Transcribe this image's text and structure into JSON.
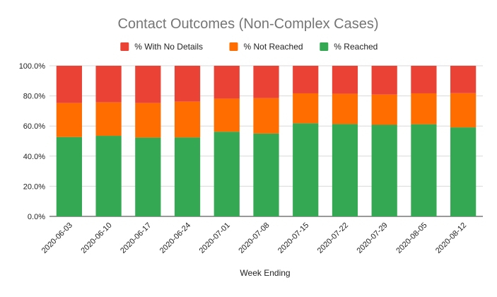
{
  "chart_data": {
    "type": "bar",
    "stacked": true,
    "title": "Contact Outcomes (Non-Complex Cases)",
    "xlabel": "Week Ending",
    "ylabel": "",
    "ylim": [
      0,
      100
    ],
    "yticks": [
      "0.0%",
      "20.0%",
      "40.0%",
      "60.0%",
      "80.0%",
      "100.0%"
    ],
    "grid": true,
    "legend_position": "top",
    "categories": [
      "2020-06-03",
      "2020-06-10",
      "2020-06-17",
      "2020-06-24",
      "2020-07-01",
      "2020-07-08",
      "2020-07-15",
      "2020-07-22",
      "2020-07-29",
      "2020-08-05",
      "2020-08-12"
    ],
    "series": [
      {
        "name": "% Reached",
        "color": "#34a853",
        "values": [
          52.7,
          53.5,
          52.3,
          52.4,
          56.2,
          55.0,
          61.8,
          61.3,
          60.8,
          61.2,
          59.1
        ]
      },
      {
        "name": "% Not Reached",
        "color": "#ff6d01",
        "values": [
          22.6,
          22.2,
          23.0,
          23.8,
          22.0,
          23.5,
          19.9,
          20.1,
          20.1,
          20.5,
          22.7
        ]
      },
      {
        "name": "% With No Details",
        "color": "#ea4335",
        "values": [
          24.7,
          24.3,
          24.7,
          23.8,
          21.8,
          21.5,
          18.3,
          18.6,
          19.1,
          18.3,
          18.2
        ]
      }
    ],
    "legend_order": [
      "% With No Details",
      "% Not Reached",
      "% Reached"
    ]
  }
}
